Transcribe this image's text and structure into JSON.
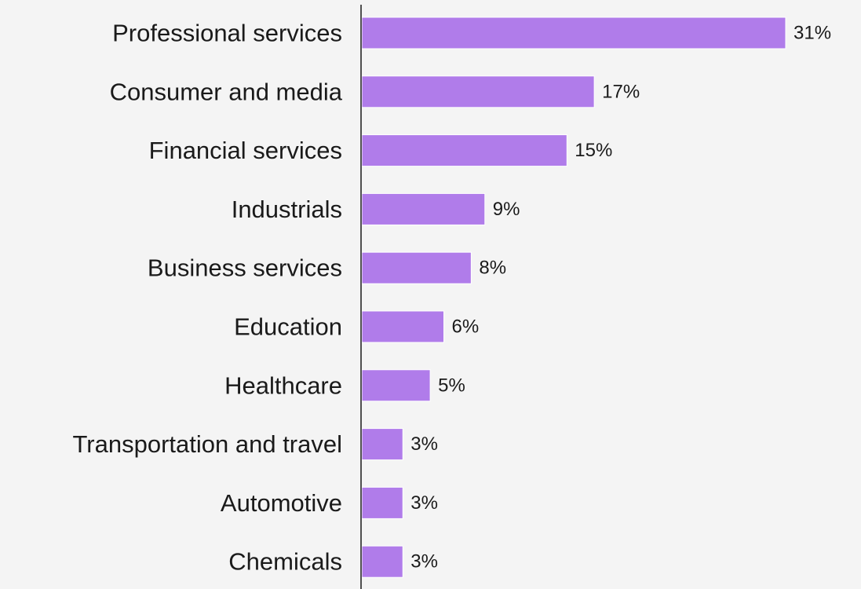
{
  "chart_data": {
    "type": "bar",
    "orientation": "horizontal",
    "categories": [
      "Professional services",
      "Consumer and media",
      "Financial services",
      "Industrials",
      "Business services",
      "Education",
      "Healthcare",
      "Transportation and travel",
      "Automotive",
      "Chemicals"
    ],
    "values": [
      31,
      17,
      15,
      9,
      8,
      6,
      5,
      3,
      3,
      3
    ],
    "value_labels": [
      "31%",
      "17%",
      "15%",
      "9%",
      "8%",
      "6%",
      "5%",
      "3%",
      "3%",
      "3%"
    ],
    "title": "",
    "xlabel": "",
    "ylabel": "",
    "xlim": [
      0,
      31
    ],
    "grid": false,
    "legend": "none",
    "bar_color": "#b07cea",
    "background_color": "#f4f4f4",
    "text_color": "#1a1a1a"
  }
}
